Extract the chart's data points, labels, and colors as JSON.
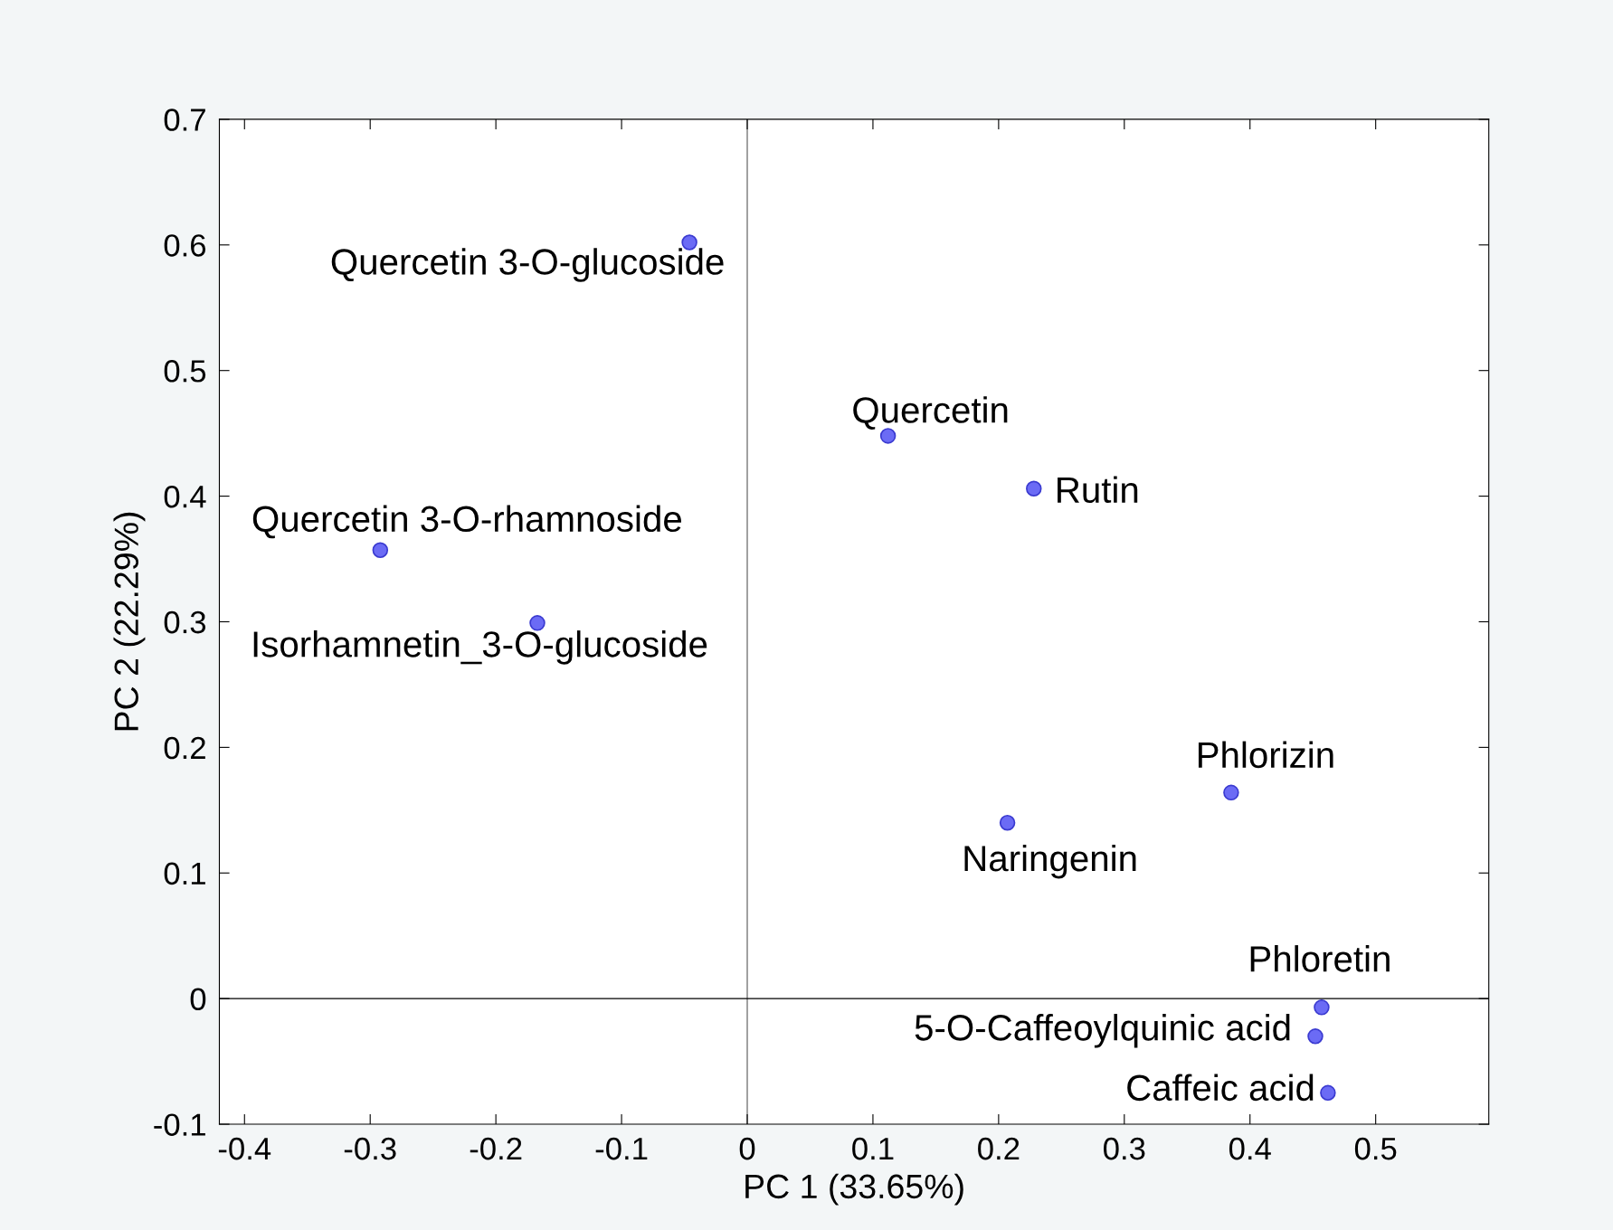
{
  "chart_data": {
    "type": "scatter",
    "xlabel": "PC 1 (33.65%)",
    "ylabel": "PC 2 (22.29%)",
    "x": [
      -0.046,
      0.112,
      0.228,
      -0.292,
      -0.167,
      0.385,
      0.207,
      0.457,
      0.452,
      0.462
    ],
    "values": [
      0.602,
      0.448,
      0.406,
      0.357,
      0.299,
      0.164,
      0.14,
      -0.007,
      -0.03,
      -0.075
    ],
    "color": "#6b6bf5",
    "marker": "circle",
    "annotations": [
      {
        "text": "Quercetin 3-O-glucoside",
        "x": -0.046,
        "y": 0.602
      },
      {
        "text": "Quercetin",
        "x": 0.112,
        "y": 0.448
      },
      {
        "text": "Rutin",
        "x": 0.228,
        "y": 0.406
      },
      {
        "text": "Quercetin 3-O-rhamnoside",
        "x": -0.292,
        "y": 0.357
      },
      {
        "text": "Isorhamnetin_3-O-glucoside",
        "x": -0.167,
        "y": 0.299
      },
      {
        "text": "Phlorizin",
        "x": 0.385,
        "y": 0.164
      },
      {
        "text": "Naringenin",
        "x": 0.207,
        "y": 0.14
      },
      {
        "text": "Phloretin",
        "x": 0.457,
        "y": -0.007
      },
      {
        "text": "5-O-Caffeoylquinic acid",
        "x": 0.452,
        "y": -0.03
      },
      {
        "text": "Caffeic acid",
        "x": 0.462,
        "y": -0.075
      }
    ],
    "ref_lines": [
      {
        "axis": "x",
        "value": 0,
        "color": "#555555"
      },
      {
        "axis": "y",
        "value": 0,
        "color": "#000000"
      }
    ],
    "xlim": [
      -0.42,
      0.59
    ],
    "ylim": [
      -0.1,
      0.7
    ],
    "xticks": [
      -0.4,
      -0.3,
      -0.2,
      -0.1,
      0,
      0.1,
      0.2,
      0.3,
      0.4,
      0.5
    ],
    "yticks": [
      -0.1,
      0,
      0.1,
      0.2,
      0.3,
      0.4,
      0.5,
      0.6,
      0.7
    ],
    "grid": false
  }
}
